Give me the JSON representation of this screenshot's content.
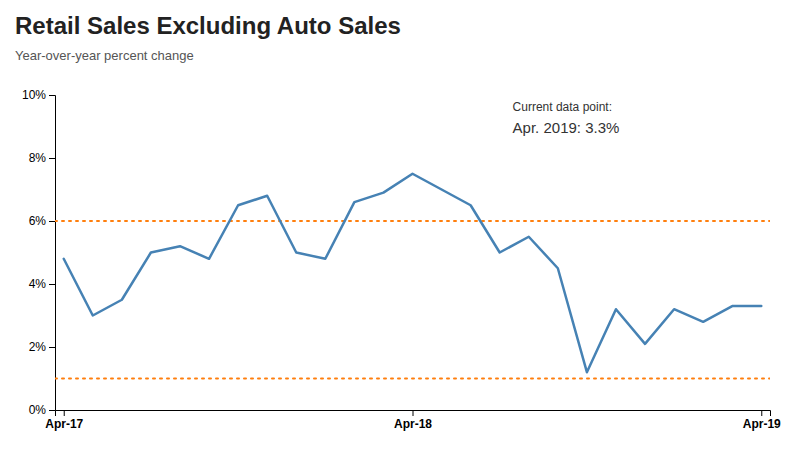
{
  "chart_data": {
    "type": "line",
    "title": "Retail Sales Excluding Auto Sales",
    "subtitle": "Year-over-year percent change",
    "annotations": [
      "Current data point:",
      "Apr. 2019: 3.3%"
    ],
    "categories": [
      "Apr-17",
      null,
      null,
      null,
      null,
      null,
      null,
      null,
      null,
      null,
      null,
      null,
      "Apr-18",
      null,
      null,
      null,
      null,
      null,
      null,
      null,
      null,
      null,
      null,
      null,
      "Apr-19"
    ],
    "values": [
      4.8,
      3.0,
      3.5,
      5.0,
      5.2,
      4.8,
      6.5,
      6.8,
      5.0,
      4.8,
      6.6,
      6.9,
      7.5,
      7.0,
      6.5,
      5.0,
      5.5,
      4.5,
      1.2,
      3.2,
      2.1,
      3.2,
      2.8,
      3.3,
      3.3
    ],
    "reference_lines": [
      1.0,
      6.0
    ],
    "ylim": [
      0,
      10
    ],
    "yticks": [
      {
        "value": 0,
        "label": "0%"
      },
      {
        "value": 2,
        "label": "2%"
      },
      {
        "value": 4,
        "label": "4%"
      },
      {
        "value": 6,
        "label": "6%"
      },
      {
        "value": 8,
        "label": "8%"
      },
      {
        "value": 10,
        "label": "10%"
      }
    ],
    "grid": false
  }
}
